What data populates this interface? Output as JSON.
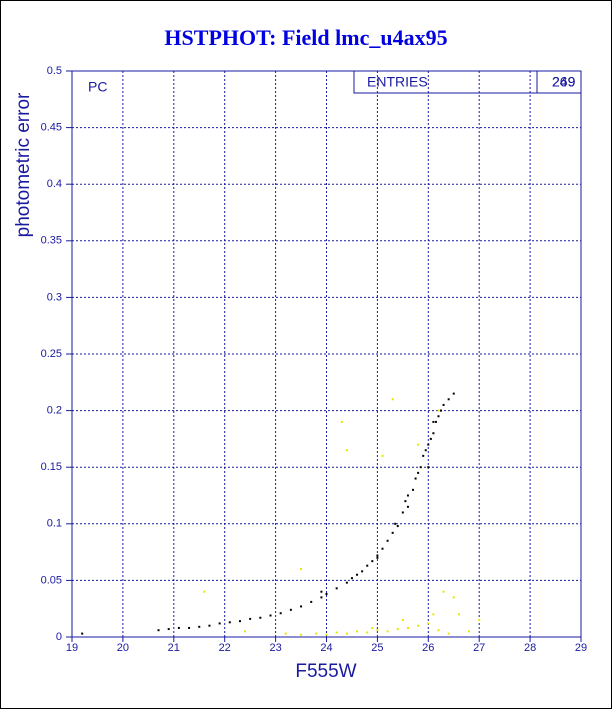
{
  "chart_data": {
    "type": "scatter",
    "title": "HSTPHOT: Field lmc_u4ax95",
    "xlabel": "F555W",
    "ylabel": "photometric error",
    "panel_label": "PC",
    "stats_label": "ENTRIES",
    "stats_values": [
      249,
      269
    ],
    "xlim": [
      19,
      29
    ],
    "ylim": [
      0,
      0.5
    ],
    "xticks": [
      19,
      20,
      21,
      22,
      23,
      24,
      25,
      26,
      27,
      28,
      29
    ],
    "yticks": [
      0,
      0.05,
      0.1,
      0.15,
      0.2,
      0.25,
      0.3,
      0.35,
      0.4,
      0.45,
      0.5
    ],
    "grid": true,
    "series": [
      {
        "color": "#000000",
        "x": [
          19.2,
          20.7,
          20.9,
          21.1,
          21.3,
          21.5,
          21.7,
          21.9,
          22.1,
          22.3,
          22.5,
          22.7,
          22.9,
          23.1,
          23.3,
          23.5,
          23.7,
          23.9,
          24.0,
          24.2,
          24.4,
          24.5,
          24.6,
          24.7,
          24.8,
          24.9,
          25.0,
          25.1,
          25.2,
          25.3,
          25.35,
          25.4,
          25.5,
          25.55,
          25.6,
          25.7,
          25.75,
          25.8,
          25.85,
          25.9,
          25.95,
          26.0,
          26.05,
          26.1,
          26.15,
          26.2,
          26.25,
          26.3,
          26.4,
          26.5,
          23.9,
          25.0,
          25.6,
          26.0,
          26.1
        ],
        "values": [
          0.003,
          0.006,
          0.007,
          0.008,
          0.008,
          0.009,
          0.01,
          0.012,
          0.013,
          0.014,
          0.016,
          0.017,
          0.019,
          0.021,
          0.024,
          0.027,
          0.031,
          0.035,
          0.038,
          0.043,
          0.048,
          0.052,
          0.055,
          0.058,
          0.063,
          0.067,
          0.072,
          0.078,
          0.085,
          0.092,
          0.1,
          0.098,
          0.11,
          0.12,
          0.125,
          0.13,
          0.14,
          0.145,
          0.15,
          0.16,
          0.165,
          0.17,
          0.175,
          0.18,
          0.19,
          0.195,
          0.2,
          0.205,
          0.21,
          0.215,
          0.04,
          0.07,
          0.115,
          0.15,
          0.19
        ]
      },
      {
        "color": "#e6e600",
        "x": [
          21.6,
          22.4,
          23.2,
          23.5,
          24.3,
          24.4,
          25.3,
          25.1,
          25.8,
          26.2,
          26.5,
          26.6,
          26.3,
          23.5,
          23.8,
          24.0,
          24.2,
          24.4,
          24.6,
          24.8,
          25.0,
          25.2,
          25.4,
          25.6,
          25.8,
          26.0,
          26.2,
          26.4,
          25.5,
          24.9,
          26.1,
          26.8,
          27.0
        ],
        "values": [
          0.04,
          0.005,
          0.003,
          0.06,
          0.19,
          0.165,
          0.21,
          0.16,
          0.17,
          0.2,
          0.035,
          0.02,
          0.04,
          0.002,
          0.003,
          0.002,
          0.004,
          0.003,
          0.005,
          0.004,
          0.006,
          0.005,
          0.007,
          0.008,
          0.01,
          0.012,
          0.006,
          0.003,
          0.015,
          0.008,
          0.02,
          0.005,
          0.015
        ]
      }
    ]
  }
}
